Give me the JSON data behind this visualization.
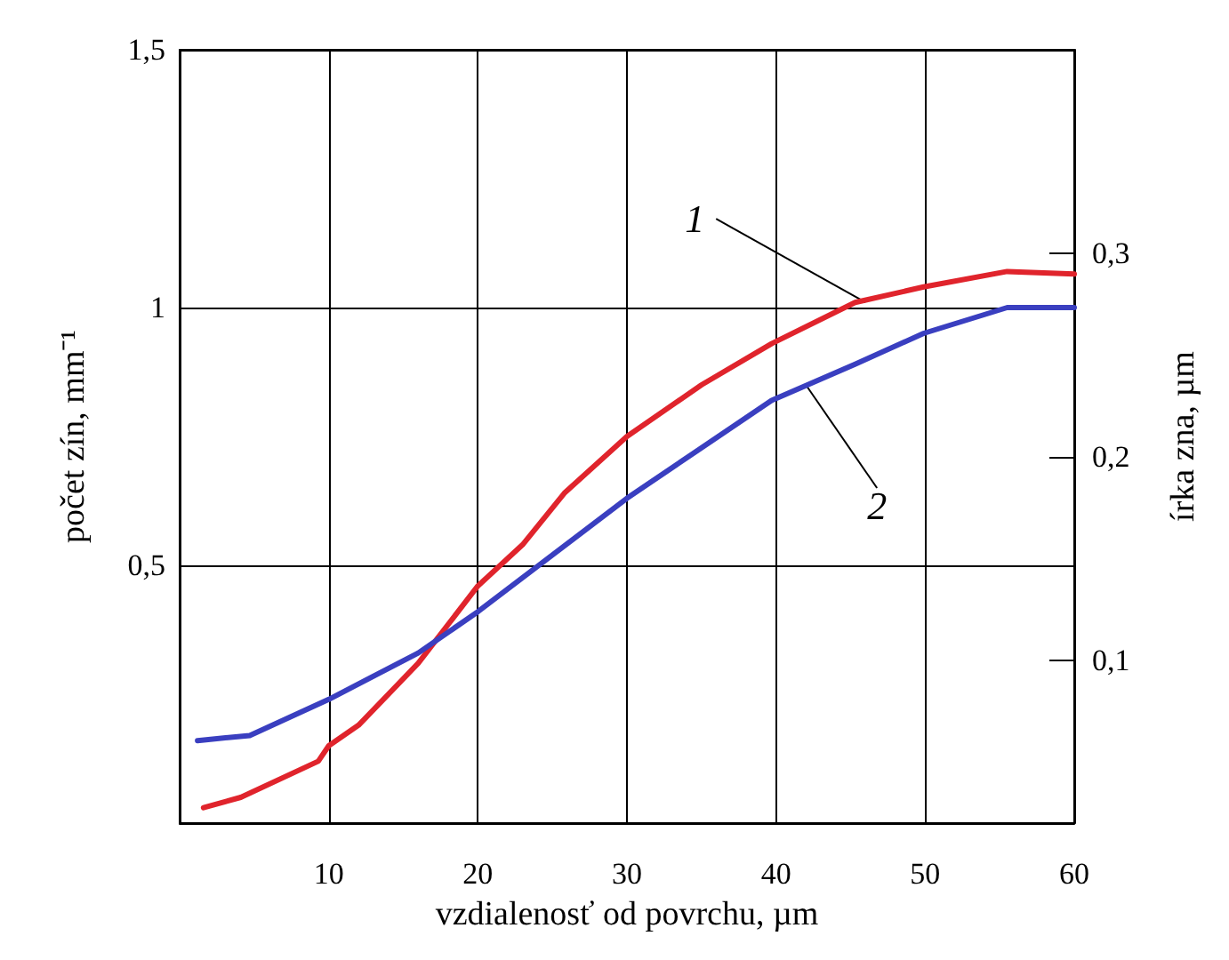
{
  "chart_data": {
    "type": "line",
    "xlabel": "vzdialenosť od povrchu, µm",
    "ylabel": "počet zín, mm⁻¹",
    "y2label": "írka zna, µm",
    "xlim": [
      0,
      60
    ],
    "xticks": [
      10,
      20,
      30,
      40,
      50,
      60
    ],
    "ylim": [
      0,
      1.5
    ],
    "yticks": [
      {
        "value": 0.5,
        "label": "0,5"
      },
      1,
      {
        "value": 1.5,
        "label": "1,5"
      }
    ],
    "y2lim": [
      0.02,
      0.4
    ],
    "y2ticks": [
      {
        "value": 0.1,
        "label": "0,1"
      },
      {
        "value": 0.2,
        "label": "0,2"
      },
      {
        "value": 0.3,
        "label": "0,3"
      }
    ],
    "grid": true,
    "marker": "none",
    "line_style": "solid",
    "series": [
      {
        "color": "#e0242c",
        "x": [
          1.6,
          4.1,
          9.3,
          10,
          12,
          16,
          20,
          23,
          25.8,
          30,
          35,
          39.7,
          45.3,
          49.9,
          55.5,
          60
        ],
        "values": [
          0.03,
          0.05,
          0.12,
          0.15,
          0.19,
          0.31,
          0.46,
          0.54,
          0.64,
          0.75,
          0.85,
          0.93,
          1.01,
          1.04,
          1.07,
          1.065
        ]
      },
      {
        "color": "#3a3fc0",
        "x": [
          1.2,
          4.7,
          10,
          16,
          20,
          25,
          30,
          39.7,
          45.3,
          49.9,
          55.5,
          60
        ],
        "values": [
          0.16,
          0.17,
          0.24,
          0.33,
          0.41,
          0.52,
          0.63,
          0.82,
          0.89,
          0.95,
          1.0,
          1.0
        ]
      }
    ],
    "annotations": [
      {
        "text": "1",
        "x": 46,
        "y": 1.01
      },
      {
        "text": "2",
        "x": 42,
        "y": 0.85
      }
    ]
  }
}
